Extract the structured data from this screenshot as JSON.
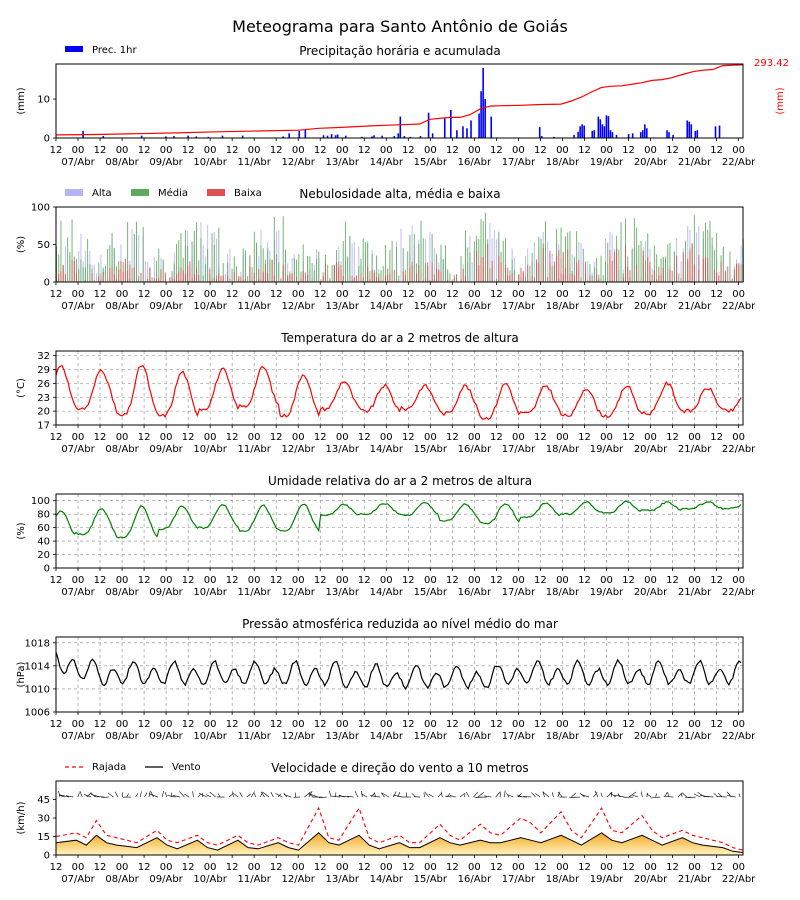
{
  "title": "Meteograma para Santo Antônio de Goiás",
  "colors": {
    "precip_bar": "#0000ff",
    "precip_acc": "#ff0000",
    "cloud_high": "#b3b3f5",
    "cloud_mid": "#5fa95f",
    "cloud_low": "#e05050",
    "temp": "#ff0000",
    "humidity": "#008000",
    "pressure": "#000000",
    "gust": "#ff0000",
    "wind": "#000000",
    "wind_fill_top": "#f5a623",
    "wind_fill_bottom": "#fff5c0"
  },
  "x_axis": {
    "hour_labels": [
      "12",
      "00",
      "12",
      "00",
      "12",
      "00",
      "12",
      "00",
      "12",
      "00",
      "12",
      "00",
      "12",
      "00",
      "12",
      "00",
      "12",
      "00",
      "12",
      "00",
      "12",
      "00",
      "12",
      "00",
      "12",
      "00",
      "12",
      "00",
      "12",
      "00",
      "12",
      "00"
    ],
    "day_labels": [
      "07/Abr",
      "08/Abr",
      "09/Abr",
      "10/Abr",
      "11/Abr",
      "12/Abr",
      "13/Abr",
      "14/Abr",
      "15/Abr",
      "16/Abr",
      "17/Abr",
      "18/Abr",
      "19/Abr",
      "20/Abr",
      "21/Abr",
      "22/Abr"
    ]
  },
  "chart_data": [
    {
      "id": "precip",
      "type": "bar",
      "title": "Precipitação horária e acumulada",
      "ylabel": "(mm)",
      "ylabel_right": "(mm)",
      "ylim": [
        0,
        19
      ],
      "yticks": [
        0,
        10
      ],
      "legend": [
        "Prec. 1hr"
      ],
      "accum_label": "293.42",
      "bars_day_mm": [
        [
          1.3,
          1.8
        ],
        [
          2.3,
          0.5
        ],
        [
          4.2,
          0.6
        ],
        [
          5.4,
          0.4
        ],
        [
          5.8,
          0.5
        ],
        [
          6.5,
          0.6
        ],
        [
          6.9,
          0.4
        ],
        [
          7.5,
          0.3
        ],
        [
          8.2,
          0.6
        ],
        [
          9.2,
          0.6
        ],
        [
          11.2,
          0.4
        ],
        [
          11.5,
          1.2
        ],
        [
          12.0,
          1.8
        ],
        [
          12.3,
          2.2
        ],
        [
          13.2,
          0.7
        ],
        [
          13.4,
          0.6
        ],
        [
          13.6,
          1.0
        ],
        [
          13.8,
          0.7
        ],
        [
          13.9,
          0.9
        ],
        [
          14.3,
          0.6
        ],
        [
          15.1,
          0.3
        ],
        [
          15.6,
          0.4
        ],
        [
          15.7,
          0.7
        ],
        [
          16.1,
          0.6
        ],
        [
          16.7,
          0.5
        ],
        [
          16.9,
          1.2
        ],
        [
          17.0,
          5.5
        ],
        [
          17.2,
          0.5
        ],
        [
          17.5,
          0.3
        ],
        [
          18.0,
          0.5
        ],
        [
          18.4,
          6.5
        ],
        [
          18.6,
          1.2
        ],
        [
          19.2,
          5.0
        ],
        [
          19.5,
          7.2
        ],
        [
          19.8,
          2.0
        ],
        [
          20.1,
          3.0
        ],
        [
          20.3,
          2.5
        ],
        [
          20.5,
          4.5
        ],
        [
          20.9,
          6.3
        ],
        [
          21.0,
          12.0
        ],
        [
          21.1,
          18.0
        ],
        [
          21.2,
          10.0
        ],
        [
          21.5,
          5.5
        ],
        [
          23.9,
          2.8
        ],
        [
          24.0,
          0.5
        ],
        [
          24.6,
          0.3
        ],
        [
          25.6,
          0.8
        ],
        [
          25.8,
          1.6
        ],
        [
          25.9,
          3.0
        ],
        [
          26.0,
          3.5
        ],
        [
          26.1,
          3.2
        ],
        [
          26.5,
          1.8
        ],
        [
          26.6,
          2.0
        ],
        [
          26.8,
          5.5
        ],
        [
          26.9,
          4.8
        ],
        [
          27.0,
          3.5
        ],
        [
          27.1,
          3.0
        ],
        [
          27.2,
          5.8
        ],
        [
          27.3,
          5.6
        ],
        [
          27.4,
          2.0
        ],
        [
          27.5,
          1.5
        ],
        [
          27.7,
          0.8
        ],
        [
          28.3,
          1.0
        ],
        [
          28.5,
          1.2
        ],
        [
          28.9,
          1.5
        ],
        [
          29.0,
          2.0
        ],
        [
          29.1,
          3.5
        ],
        [
          29.2,
          2.5
        ],
        [
          30.2,
          2.0
        ],
        [
          30.3,
          1.5
        ],
        [
          30.5,
          0.8
        ],
        [
          31.2,
          4.5
        ],
        [
          31.3,
          4.2
        ],
        [
          31.4,
          3.5
        ],
        [
          31.6,
          1.8
        ],
        [
          31.7,
          2.0
        ],
        [
          32.6,
          3.0
        ],
        [
          32.8,
          3.2
        ]
      ],
      "accum_day_mm": [
        [
          0,
          0.8
        ],
        [
          2,
          0.9
        ],
        [
          4,
          1.1
        ],
        [
          6,
          1.3
        ],
        [
          8,
          1.6
        ],
        [
          10,
          1.8
        ],
        [
          12,
          2.0
        ],
        [
          13,
          2.5
        ],
        [
          14,
          2.7
        ],
        [
          16,
          3.2
        ],
        [
          17,
          3.4
        ],
        [
          18,
          3.6
        ],
        [
          18.5,
          4.8
        ],
        [
          19.5,
          5.3
        ],
        [
          20,
          5.3
        ],
        [
          20.5,
          6.0
        ],
        [
          21,
          7.5
        ],
        [
          21.5,
          8.2
        ],
        [
          22,
          8.3
        ],
        [
          23,
          8.4
        ],
        [
          24,
          8.6
        ],
        [
          25,
          8.7
        ],
        [
          25.5,
          9.5
        ],
        [
          26,
          10.5
        ],
        [
          26.5,
          11.8
        ],
        [
          27,
          13.0
        ],
        [
          27.5,
          13.3
        ],
        [
          28,
          13.4
        ],
        [
          29,
          14.2
        ],
        [
          29.5,
          14.8
        ],
        [
          30,
          15.0
        ],
        [
          30.5,
          15.5
        ],
        [
          31,
          16.3
        ],
        [
          31.5,
          17.0
        ],
        [
          32,
          17.4
        ],
        [
          32.5,
          17.6
        ],
        [
          33,
          18.6
        ],
        [
          34,
          18.8
        ]
      ]
    },
    {
      "id": "clouds",
      "type": "bar",
      "title": "Nebulosidade alta, média e baixa",
      "ylabel": "(%)",
      "ylim": [
        0,
        100
      ],
      "yticks": [
        0,
        50,
        100
      ],
      "legend": [
        "Alta",
        "Média",
        "Baixa"
      ],
      "cloud_seed": 7
    },
    {
      "id": "temp",
      "type": "line",
      "title": "Temperatura do ar a 2 metros de altura",
      "ylabel": "(°C)",
      "ylim": [
        17,
        33
      ],
      "yticks": [
        17,
        20,
        23,
        26,
        29,
        32
      ],
      "daily_max": [
        30.0,
        29.0,
        30.0,
        28.5,
        29.0,
        29.5,
        28.0,
        26.5,
        25.5,
        25.5,
        25.5,
        26.0,
        25.5,
        25.0,
        25.5,
        26.0,
        25.0
      ],
      "daily_min": [
        20.0,
        20.5,
        19.0,
        19.0,
        20.5,
        21.0,
        19.0,
        20.5,
        20.0,
        20.5,
        19.5,
        18.5,
        19.5,
        19.0,
        19.0,
        19.5,
        20.0
      ]
    },
    {
      "id": "humidity",
      "type": "line",
      "title": "Umidade relativa do ar a 2 metros de altura",
      "ylabel": "(%)",
      "ylim": [
        0,
        110
      ],
      "yticks": [
        0,
        20,
        40,
        60,
        80,
        100
      ],
      "daily_max": [
        85,
        88,
        92,
        92,
        95,
        93,
        95,
        94,
        96,
        97,
        95,
        96,
        97,
        98,
        99,
        98,
        98
      ],
      "daily_min": [
        45,
        50,
        45,
        58,
        60,
        55,
        55,
        78,
        80,
        78,
        70,
        66,
        75,
        80,
        82,
        85,
        88
      ]
    },
    {
      "id": "pressure",
      "type": "line",
      "title": "Pressão atmosférica reduzida ao nível médio do mar",
      "ylabel": "(hPa)",
      "ylim": [
        1006,
        1019
      ],
      "yticks": [
        1006,
        1010,
        1014,
        1018
      ],
      "mean": 1012.5,
      "amplitude": 2.3
    },
    {
      "id": "wind",
      "type": "line",
      "title": "Velocidade e direção do vento a 10 metros",
      "ylabel": "(km/h)",
      "ylim": [
        0,
        60
      ],
      "yticks": [
        0,
        15,
        30,
        45
      ],
      "legend": [
        "Rajada",
        "Vento"
      ],
      "wind_points": [
        [
          0,
          10
        ],
        [
          1,
          12
        ],
        [
          1.5,
          8
        ],
        [
          2,
          16
        ],
        [
          2.5,
          10
        ],
        [
          3,
          8
        ],
        [
          4,
          6
        ],
        [
          5,
          14
        ],
        [
          5.5,
          8
        ],
        [
          6,
          5
        ],
        [
          7,
          12
        ],
        [
          7.5,
          6
        ],
        [
          8,
          4
        ],
        [
          9,
          12
        ],
        [
          9.5,
          6
        ],
        [
          10,
          5
        ],
        [
          11,
          10
        ],
        [
          11.5,
          6
        ],
        [
          12,
          4
        ],
        [
          13,
          18
        ],
        [
          13.5,
          10
        ],
        [
          14,
          8
        ],
        [
          15,
          16
        ],
        [
          15.5,
          8
        ],
        [
          16,
          5
        ],
        [
          17,
          10
        ],
        [
          17.5,
          6
        ],
        [
          18,
          6
        ],
        [
          19,
          14
        ],
        [
          19.5,
          10
        ],
        [
          20,
          8
        ],
        [
          21,
          12
        ],
        [
          21.5,
          10
        ],
        [
          22,
          10
        ],
        [
          23,
          14
        ],
        [
          23.5,
          12
        ],
        [
          24,
          10
        ],
        [
          25,
          16
        ],
        [
          25.5,
          12
        ],
        [
          26,
          8
        ],
        [
          27,
          18
        ],
        [
          27.5,
          12
        ],
        [
          28,
          10
        ],
        [
          29,
          16
        ],
        [
          29.5,
          12
        ],
        [
          30,
          8
        ],
        [
          31,
          14
        ],
        [
          31.5,
          10
        ],
        [
          32,
          8
        ],
        [
          33,
          6
        ],
        [
          33.5,
          3
        ],
        [
          34,
          2
        ]
      ],
      "gust_points": [
        [
          0,
          15
        ],
        [
          1,
          18
        ],
        [
          1.5,
          14
        ],
        [
          2,
          28
        ],
        [
          2.5,
          16
        ],
        [
          3,
          14
        ],
        [
          4,
          10
        ],
        [
          5,
          20
        ],
        [
          5.5,
          12
        ],
        [
          6,
          10
        ],
        [
          7,
          16
        ],
        [
          7.5,
          10
        ],
        [
          8,
          8
        ],
        [
          9,
          16
        ],
        [
          9.5,
          10
        ],
        [
          10,
          8
        ],
        [
          11,
          14
        ],
        [
          11.5,
          10
        ],
        [
          12,
          8
        ],
        [
          13,
          38
        ],
        [
          13.5,
          14
        ],
        [
          14,
          12
        ],
        [
          15,
          38
        ],
        [
          15.5,
          14
        ],
        [
          16,
          10
        ],
        [
          17,
          16
        ],
        [
          17.5,
          10
        ],
        [
          18,
          10
        ],
        [
          19,
          25
        ],
        [
          19.5,
          16
        ],
        [
          20,
          12
        ],
        [
          21,
          25
        ],
        [
          21.5,
          18
        ],
        [
          22,
          16
        ],
        [
          23,
          30
        ],
        [
          23.5,
          26
        ],
        [
          24,
          18
        ],
        [
          25,
          35
        ],
        [
          25.5,
          20
        ],
        [
          26,
          14
        ],
        [
          27,
          38
        ],
        [
          27.5,
          20
        ],
        [
          28,
          18
        ],
        [
          29,
          32
        ],
        [
          29.5,
          20
        ],
        [
          30,
          14
        ],
        [
          31,
          20
        ],
        [
          31.5,
          16
        ],
        [
          32,
          14
        ],
        [
          33,
          10
        ],
        [
          33.5,
          6
        ],
        [
          34,
          4
        ]
      ]
    }
  ]
}
